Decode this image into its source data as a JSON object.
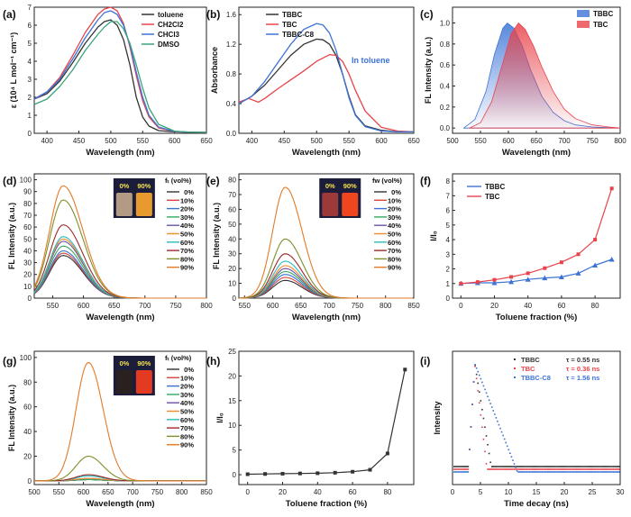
{
  "figure": {
    "colors": {
      "black": "#333333",
      "red": "#e8434a",
      "blue": "#3c73d6",
      "green": "#3aa37a",
      "frac": [
        "#333333",
        "#d9443e",
        "#3b6fd8",
        "#35a85f",
        "#6c51a4",
        "#ed8c2c",
        "#2bbbbd",
        "#9c2a2a",
        "#7f8e2b",
        "#e07b2a"
      ]
    }
  },
  "chart_data": [
    {
      "panel": "(a)",
      "type": "line",
      "xlabel": "Wavelength (nm)",
      "ylabel": "ε (10⁴ L mol⁻¹ cm⁻¹)",
      "xlim": [
        380,
        650
      ],
      "ylim": [
        0,
        7
      ],
      "xticks": [
        400,
        450,
        500,
        550,
        600,
        650
      ],
      "yticks": [
        0,
        1,
        2,
        3,
        4,
        5,
        6,
        7
      ],
      "legend_position": "top-right",
      "series": [
        {
          "name": "toluene",
          "color": "black",
          "x": [
            380,
            400,
            420,
            440,
            460,
            480,
            490,
            500,
            510,
            520,
            530,
            540,
            550,
            560,
            575,
            600,
            625,
            650
          ],
          "y": [
            1.9,
            2.2,
            2.9,
            3.9,
            5.0,
            5.9,
            6.2,
            6.3,
            6.0,
            5.2,
            3.8,
            2.0,
            0.9,
            0.4,
            0.15,
            0.08,
            0.06,
            0.05
          ]
        },
        {
          "name": "CH2Cl2",
          "color": "red",
          "x": [
            380,
            400,
            420,
            440,
            460,
            480,
            490,
            500,
            510,
            520,
            530,
            540,
            550,
            560,
            575,
            600,
            625,
            650
          ],
          "y": [
            1.9,
            2.3,
            3.1,
            4.3,
            5.6,
            6.6,
            6.9,
            7.0,
            6.8,
            6.1,
            4.8,
            3.2,
            1.8,
            0.9,
            0.3,
            0.1,
            0.06,
            0.05
          ]
        },
        {
          "name": "CHCl3",
          "color": "blue",
          "x": [
            380,
            400,
            420,
            440,
            460,
            480,
            490,
            500,
            510,
            520,
            530,
            540,
            550,
            560,
            575,
            600,
            625,
            650
          ],
          "y": [
            1.9,
            2.3,
            3.0,
            4.1,
            5.3,
            6.3,
            6.7,
            6.8,
            6.6,
            6.0,
            4.9,
            3.4,
            2.0,
            1.0,
            0.35,
            0.1,
            0.06,
            0.05
          ]
        },
        {
          "name": "DMSO",
          "color": "green",
          "x": [
            380,
            400,
            420,
            440,
            460,
            480,
            490,
            500,
            510,
            520,
            530,
            540,
            550,
            560,
            575,
            600,
            625,
            650
          ],
          "y": [
            1.6,
            1.9,
            2.6,
            3.5,
            4.6,
            5.5,
            5.9,
            6.2,
            6.2,
            5.8,
            5.0,
            3.8,
            2.5,
            1.4,
            0.5,
            0.12,
            0.06,
            0.05
          ]
        }
      ]
    },
    {
      "panel": "(b)",
      "type": "line",
      "xlabel": "Wavelength (nm)",
      "ylabel": "Absorbance",
      "xlim": [
        380,
        650
      ],
      "ylim": [
        0,
        1.7
      ],
      "xticks": [
        400,
        450,
        500,
        550,
        600,
        650
      ],
      "yticks": [
        0,
        0.4,
        0.8,
        1.2,
        1.6
      ],
      "annotation": "In toluene",
      "legend_position": "top-left",
      "series": [
        {
          "name": "TBBC",
          "color": "black",
          "x": [
            380,
            400,
            420,
            440,
            460,
            480,
            500,
            510,
            520,
            530,
            540,
            550,
            560,
            575,
            600,
            625,
            650
          ],
          "y": [
            0.4,
            0.5,
            0.65,
            0.85,
            1.05,
            1.2,
            1.27,
            1.26,
            1.2,
            1.05,
            0.8,
            0.5,
            0.25,
            0.1,
            0.04,
            0.02,
            0.02
          ]
        },
        {
          "name": "TBC",
          "color": "red",
          "x": [
            380,
            395,
            410,
            420,
            440,
            460,
            480,
            500,
            520,
            530,
            540,
            550,
            560,
            575,
            600,
            625,
            650
          ],
          "y": [
            0.42,
            0.47,
            0.42,
            0.47,
            0.6,
            0.72,
            0.84,
            0.97,
            1.06,
            1.05,
            0.97,
            0.8,
            0.58,
            0.3,
            0.08,
            0.03,
            0.02
          ]
        },
        {
          "name": "TBBC-C8",
          "color": "blue",
          "x": [
            380,
            400,
            420,
            440,
            460,
            480,
            500,
            510,
            520,
            530,
            540,
            550,
            560,
            575,
            600,
            625,
            650
          ],
          "y": [
            0.4,
            0.5,
            0.7,
            0.95,
            1.2,
            1.4,
            1.48,
            1.46,
            1.35,
            1.12,
            0.8,
            0.48,
            0.24,
            0.09,
            0.03,
            0.02,
            0.02
          ]
        }
      ]
    },
    {
      "panel": "(c)",
      "type": "area",
      "xlabel": "Wavelength (nm)",
      "ylabel": "FL Intensity (a.u.)",
      "xlim": [
        500,
        800
      ],
      "ylim": [
        -0.05,
        1.15
      ],
      "xticks": [
        500,
        550,
        600,
        650,
        700,
        750,
        800
      ],
      "yticks": [
        0.0,
        0.2,
        0.4,
        0.6,
        0.8,
        1.0
      ],
      "legend_position": "top-right",
      "series": [
        {
          "name": "TBBC",
          "color": "blue",
          "x": [
            520,
            540,
            560,
            575,
            590,
            598,
            610,
            625,
            640,
            660,
            680,
            700,
            720,
            750,
            800
          ],
          "y": [
            0,
            0.08,
            0.35,
            0.7,
            0.95,
            1.0,
            0.95,
            0.78,
            0.55,
            0.3,
            0.15,
            0.07,
            0.03,
            0.01,
            0
          ]
        },
        {
          "name": "TBC",
          "color": "red",
          "x": [
            530,
            550,
            570,
            590,
            605,
            618,
            630,
            645,
            660,
            680,
            700,
            720,
            750,
            780,
            800
          ],
          "y": [
            0,
            0.05,
            0.25,
            0.62,
            0.9,
            1.0,
            0.94,
            0.78,
            0.58,
            0.35,
            0.18,
            0.09,
            0.03,
            0.01,
            0
          ]
        }
      ]
    },
    {
      "panel": "(d)",
      "type": "line",
      "xlabel": "Wavelength (nm)",
      "ylabel": "FL Intensity (a.u.)",
      "xlim": [
        520,
        800
      ],
      "ylim": [
        0,
        105
      ],
      "xticks": [
        550,
        600,
        650,
        700,
        750,
        800
      ],
      "yticks": [
        0,
        10,
        20,
        30,
        40,
        50,
        60,
        70,
        80,
        90,
        100
      ],
      "legend_title": "fₜ (vol%)",
      "legend_position": "top-right",
      "inset_labels": [
        "0%",
        "90%"
      ],
      "peak_wavelength": 567,
      "series": [
        {
          "name": "0%",
          "peak": 36
        },
        {
          "name": "10%",
          "peak": 38
        },
        {
          "name": "20%",
          "peak": 40
        },
        {
          "name": "30%",
          "peak": 44
        },
        {
          "name": "40%",
          "peak": 48
        },
        {
          "name": "50%",
          "peak": 50
        },
        {
          "name": "60%",
          "peak": 52
        },
        {
          "name": "70%",
          "peak": 62
        },
        {
          "name": "80%",
          "peak": 83
        },
        {
          "name": "90%",
          "peak": 95
        }
      ]
    },
    {
      "panel": "(e)",
      "type": "line",
      "xlabel": "Wavelength (nm)",
      "ylabel": "FL Intensity (a.u.)",
      "xlim": [
        540,
        850
      ],
      "ylim": [
        0,
        84
      ],
      "xticks": [
        550,
        600,
        650,
        700,
        750,
        800,
        850
      ],
      "yticks": [
        0,
        10,
        20,
        30,
        40,
        50,
        60,
        70,
        80
      ],
      "legend_title": "fw (vol%)",
      "legend_position": "top-right",
      "inset_labels": [
        "0%",
        "90%"
      ],
      "peak_wavelength": 622,
      "series": [
        {
          "name": "0%",
          "peak": 12
        },
        {
          "name": "10%",
          "peak": 14
        },
        {
          "name": "20%",
          "peak": 16
        },
        {
          "name": "30%",
          "peak": 18
        },
        {
          "name": "40%",
          "peak": 20
        },
        {
          "name": "50%",
          "peak": 22
        },
        {
          "name": "60%",
          "peak": 25
        },
        {
          "name": "70%",
          "peak": 30
        },
        {
          "name": "80%",
          "peak": 40
        },
        {
          "name": "90%",
          "peak": 75
        }
      ]
    },
    {
      "panel": "(f)",
      "type": "line",
      "xlabel": "Toluene fraction (%)",
      "ylabel": "I/I₀",
      "xlim": [
        -5,
        95
      ],
      "ylim": [
        0,
        8.5
      ],
      "xticks": [
        0,
        20,
        40,
        60,
        80
      ],
      "yticks": [
        0,
        1,
        2,
        3,
        4,
        5,
        6,
        7,
        8
      ],
      "legend_position": "top-left",
      "x": [
        0,
        10,
        20,
        30,
        40,
        50,
        60,
        70,
        80,
        90
      ],
      "series": [
        {
          "name": "TBBC",
          "color": "blue",
          "marker": "triangle",
          "values": [
            1.0,
            1.05,
            1.05,
            1.12,
            1.28,
            1.38,
            1.45,
            1.7,
            2.25,
            2.65
          ]
        },
        {
          "name": "TBC",
          "color": "red",
          "marker": "square",
          "values": [
            1.0,
            1.1,
            1.25,
            1.45,
            1.7,
            2.05,
            2.45,
            3.0,
            4.0,
            7.5
          ]
        }
      ]
    },
    {
      "panel": "(g)",
      "type": "line",
      "xlabel": "Wavelength (nm)",
      "ylabel": "FL Intensity (a.u.)",
      "xlim": [
        500,
        850
      ],
      "ylim": [
        -3,
        105
      ],
      "xticks": [
        500,
        550,
        600,
        650,
        700,
        750,
        800,
        850
      ],
      "yticks": [
        0,
        20,
        40,
        60,
        80,
        100
      ],
      "legend_title": "fₜ (vol%)",
      "legend_position": "top-right",
      "inset_labels": [
        "0%",
        "90%"
      ],
      "peak_wavelength": 610,
      "series": [
        {
          "name": "0%",
          "peak": 1
        },
        {
          "name": "10%",
          "peak": 1
        },
        {
          "name": "20%",
          "peak": 1
        },
        {
          "name": "30%",
          "peak": 1
        },
        {
          "name": "40%",
          "peak": 2
        },
        {
          "name": "50%",
          "peak": 2
        },
        {
          "name": "60%",
          "peak": 4
        },
        {
          "name": "70%",
          "peak": 5
        },
        {
          "name": "80%",
          "peak": 20
        },
        {
          "name": "90%",
          "peak": 96
        }
      ]
    },
    {
      "panel": "(h)",
      "type": "line",
      "xlabel": "Toluene fraction (%)",
      "ylabel": "I/I₀",
      "xlim": [
        -5,
        95
      ],
      "ylim": [
        -2,
        25
      ],
      "xticks": [
        0,
        20,
        40,
        60,
        80
      ],
      "yticks": [
        0,
        5,
        10,
        15,
        20,
        25
      ],
      "x": [
        0,
        10,
        20,
        30,
        40,
        50,
        60,
        70,
        80,
        90
      ],
      "series": [
        {
          "color": "black",
          "marker": "square",
          "values": [
            0.1,
            0.15,
            0.2,
            0.25,
            0.3,
            0.4,
            0.6,
            1.0,
            4.3,
            21.3
          ]
        }
      ]
    },
    {
      "panel": "(i)",
      "type": "scatter",
      "xlabel": "Time decay (ns)",
      "ylabel": "Intensity",
      "xlim": [
        0,
        30
      ],
      "xticks": [
        0,
        5,
        10,
        15,
        20,
        25,
        30
      ],
      "legend_position": "top-right",
      "series": [
        {
          "name": "TBBC",
          "lifetime_label": "τ = 0.55 ns",
          "color": "black",
          "peak_time": 4.0,
          "tau": 0.55
        },
        {
          "name": "TBC",
          "lifetime_label": "τ = 0.36 ns",
          "color": "red",
          "peak_time": 4.0,
          "tau": 0.36
        },
        {
          "name": "TBBC-C8",
          "lifetime_label": "τ = 1.56 ns",
          "color": "blue",
          "peak_time": 4.0,
          "tau": 1.56
        }
      ]
    }
  ]
}
